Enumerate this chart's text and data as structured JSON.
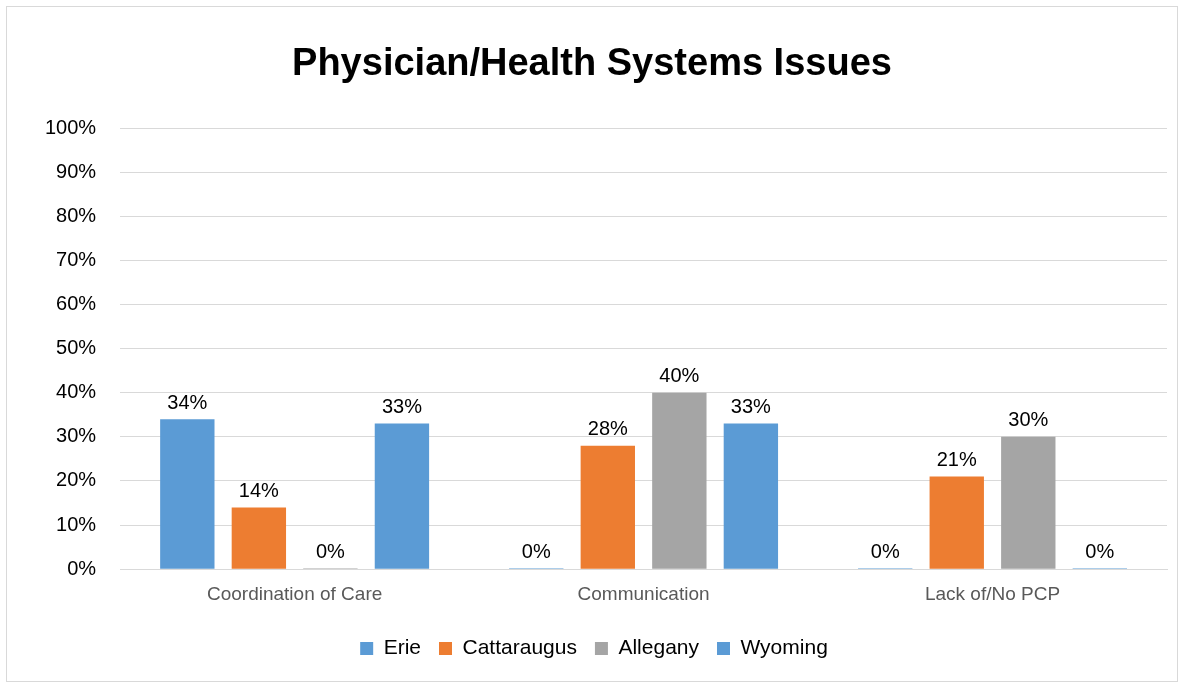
{
  "chart_data": {
    "type": "bar",
    "title": "Physician/Health Systems Issues",
    "categories": [
      "Coordination of Care",
      "Communication",
      "Lack of/No PCP"
    ],
    "series": [
      {
        "name": "Erie",
        "color": "#5b9bd5",
        "values": [
          34,
          0,
          0
        ],
        "value_labels": [
          "34%",
          "0%",
          "0%"
        ]
      },
      {
        "name": "Cattaraugus",
        "color": "#ed7d31",
        "values": [
          14,
          28,
          21
        ],
        "value_labels": [
          "14%",
          "28%",
          "21%"
        ]
      },
      {
        "name": "Allegany",
        "color": "#a5a5a5",
        "values": [
          0,
          40,
          30
        ],
        "value_labels": [
          "0%",
          "40%",
          "30%"
        ]
      },
      {
        "name": "Wyoming",
        "color": "#5b9bd5",
        "values": [
          33,
          33,
          0
        ],
        "value_labels": [
          "33%",
          "33%",
          "0%"
        ]
      }
    ],
    "ylim": [
      0,
      100
    ],
    "yticks": [
      {
        "value": 0,
        "label": "0%"
      },
      {
        "value": 10,
        "label": "10%"
      },
      {
        "value": 20,
        "label": "20%"
      },
      {
        "value": 30,
        "label": "30%"
      },
      {
        "value": 40,
        "label": "40%"
      },
      {
        "value": 50,
        "label": "50%"
      },
      {
        "value": 60,
        "label": "60%"
      },
      {
        "value": 70,
        "label": "70%"
      },
      {
        "value": 80,
        "label": "80%"
      },
      {
        "value": 90,
        "label": "90%"
      },
      {
        "value": 100,
        "label": "100%"
      }
    ],
    "grid": "y",
    "legend": "bottom"
  }
}
